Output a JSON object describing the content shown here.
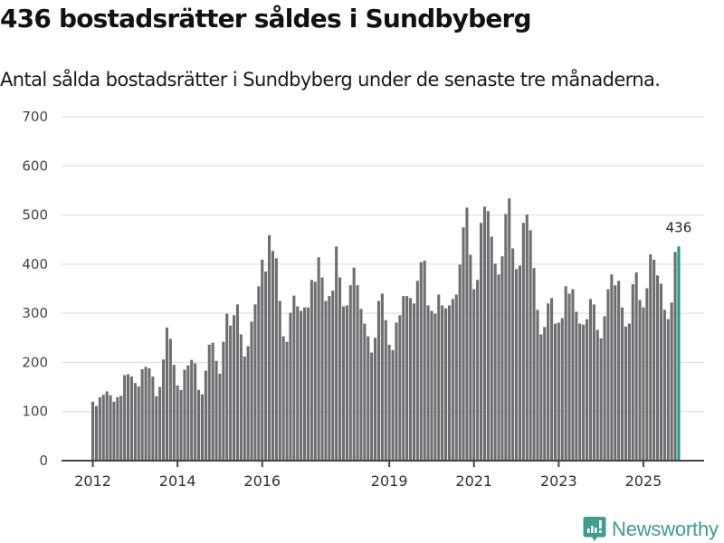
{
  "header": {
    "title": "436 bostadsrätter såldes i Sundbyberg",
    "subtitle": "Antal sålda bostadsrätter i Sundbyberg under de senaste tre månaderna."
  },
  "brand": {
    "name": "Newsworthy",
    "color": "#3f9c8f",
    "logo_icon": "newsworthy-chart-bubble-icon"
  },
  "colors": {
    "bar": "#6e6d72",
    "highlight": "#1a9a8a",
    "grid": "#e0e0e0",
    "axis": "#444444"
  },
  "chart_data": {
    "type": "bar",
    "title": "436 bostadsrätter såldes i Sundbyberg",
    "subtitle": "Antal sålda bostadsrätter i Sundbyberg under de senaste tre månaderna.",
    "xlabel": "",
    "ylabel": "",
    "ylim": [
      0,
      700
    ],
    "yticks": [
      0,
      100,
      200,
      300,
      400,
      500,
      600,
      700
    ],
    "xtick_labels": [
      "2012",
      "2014",
      "2016",
      "2019",
      "2021",
      "2023",
      "2025"
    ],
    "grid": true,
    "legend": "none",
    "start_period": "2012-01",
    "end_period": "2025-11",
    "frequency": "monthly",
    "highlight_last": true,
    "last_value_label": "436",
    "values": [
      120,
      111,
      129,
      134,
      141,
      133,
      120,
      129,
      132,
      174,
      176,
      171,
      158,
      151,
      186,
      191,
      188,
      171,
      131,
      150,
      206,
      271,
      248,
      195,
      153,
      144,
      185,
      194,
      205,
      198,
      144,
      135,
      183,
      236,
      240,
      203,
      177,
      242,
      299,
      275,
      296,
      318,
      257,
      212,
      233,
      283,
      318,
      355,
      409,
      385,
      459,
      427,
      412,
      325,
      253,
      242,
      301,
      336,
      314,
      305,
      312,
      312,
      368,
      364,
      414,
      373,
      325,
      335,
      346,
      436,
      373,
      314,
      316,
      357,
      393,
      357,
      309,
      279,
      253,
      220,
      250,
      325,
      340,
      286,
      236,
      225,
      281,
      296,
      335,
      335,
      331,
      320,
      366,
      404,
      407,
      316,
      305,
      299,
      338,
      316,
      310,
      316,
      329,
      338,
      399,
      475,
      515,
      419,
      349,
      368,
      484,
      517,
      508,
      456,
      401,
      379,
      416,
      502,
      534,
      432,
      390,
      397,
      484,
      501,
      469,
      392,
      307,
      257,
      272,
      320,
      331,
      279,
      281,
      290,
      355,
      340,
      349,
      303,
      279,
      277,
      288,
      329,
      318,
      266,
      249,
      294,
      349,
      379,
      357,
      366,
      312,
      273,
      279,
      359,
      383,
      327,
      312,
      351,
      420,
      409,
      377,
      360,
      307,
      288,
      322,
      425,
      436
    ]
  }
}
